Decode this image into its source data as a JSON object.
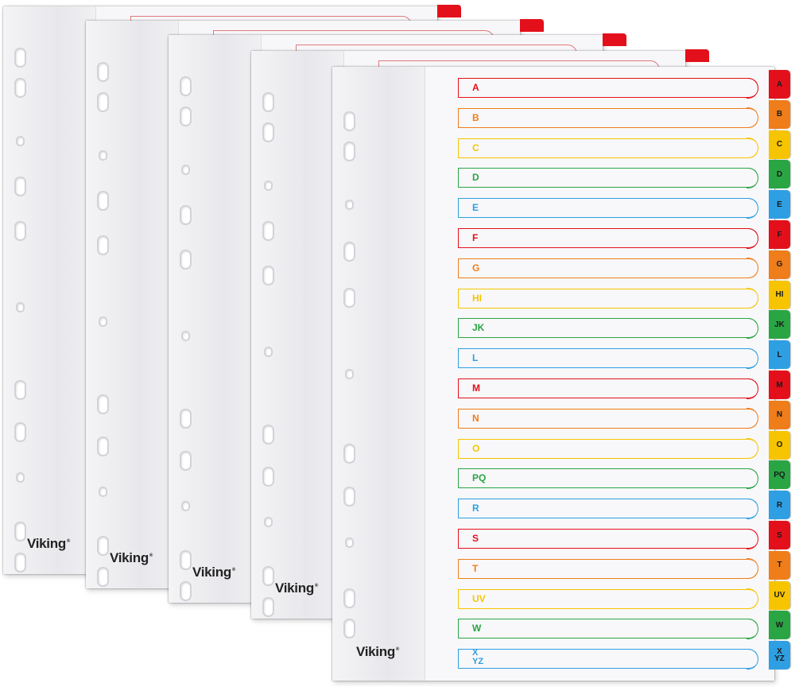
{
  "brand": "Viking",
  "colors": {
    "red": "#e3101b",
    "orange": "#ef7d1a",
    "yellow": "#f6c400",
    "green": "#2aa544",
    "blue": "#2e9fe2"
  },
  "dividers": [
    {
      "label": "A",
      "color": "#e3101b"
    },
    {
      "label": "B",
      "color": "#ef7d1a"
    },
    {
      "label": "C",
      "color": "#f6c400"
    },
    {
      "label": "D",
      "color": "#2aa544"
    },
    {
      "label": "E",
      "color": "#2e9fe2"
    },
    {
      "label": "F",
      "color": "#e3101b"
    },
    {
      "label": "G",
      "color": "#ef7d1a"
    },
    {
      "label": "HI",
      "color": "#f6c400"
    },
    {
      "label": "JK",
      "color": "#2aa544"
    },
    {
      "label": "L",
      "color": "#2e9fe2"
    },
    {
      "label": "M",
      "color": "#e3101b"
    },
    {
      "label": "N",
      "color": "#ef7d1a"
    },
    {
      "label": "O",
      "color": "#f6c400"
    },
    {
      "label": "PQ",
      "color": "#2aa544"
    },
    {
      "label": "R",
      "color": "#2e9fe2"
    },
    {
      "label": "S",
      "color": "#e3101b"
    },
    {
      "label": "T",
      "color": "#ef7d1a"
    },
    {
      "label": "UV",
      "color": "#f6c400"
    },
    {
      "label": "W",
      "color": "#2aa544"
    },
    {
      "label": "X\nYZ",
      "color": "#2e9fe2"
    }
  ],
  "sheet_count": 5
}
